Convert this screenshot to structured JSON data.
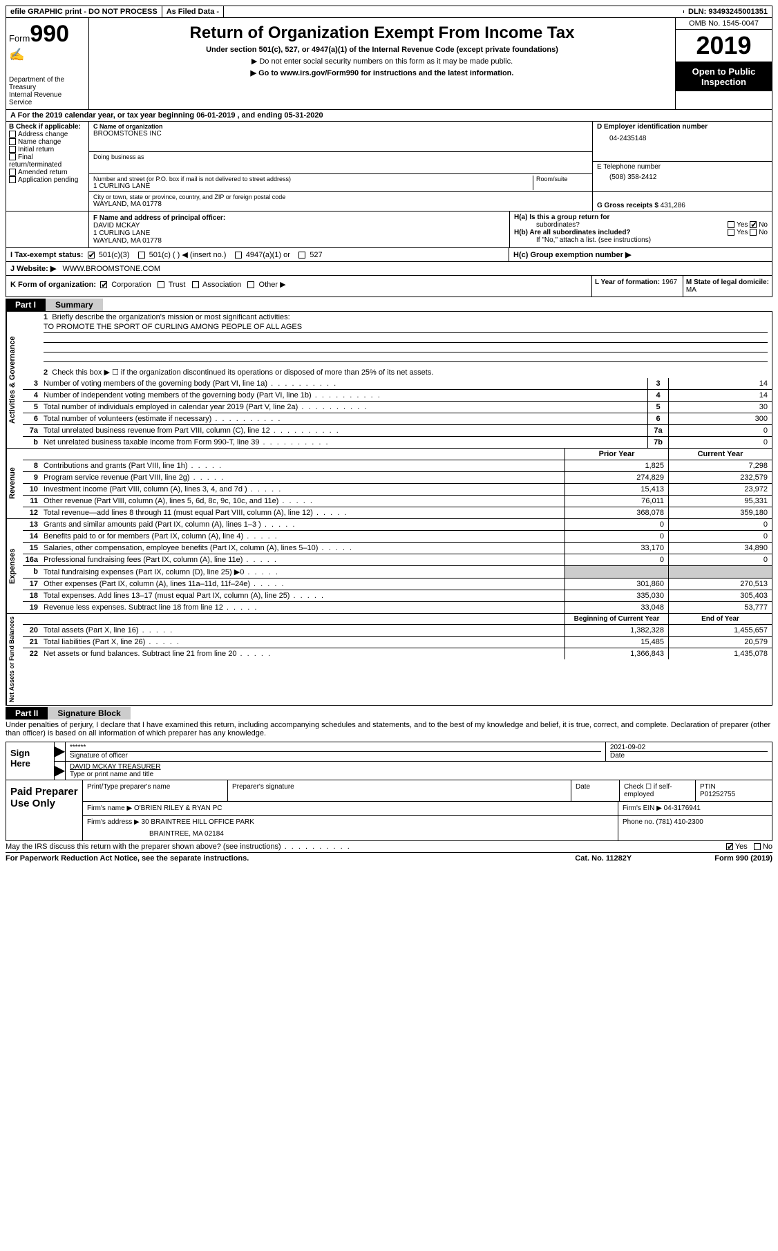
{
  "top": {
    "efile": "efile GRAPHIC print - DO NOT PROCESS",
    "asfiled": "As Filed Data -",
    "dln_label": "DLN:",
    "dln": "93493245001351"
  },
  "header": {
    "form_label": "Form",
    "form_num": "990",
    "dept1": "Department of the Treasury",
    "dept2": "Internal Revenue Service",
    "title": "Return of Organization Exempt From Income Tax",
    "sub": "Under section 501(c), 527, or 4947(a)(1) of the Internal Revenue Code (except private foundations)",
    "note1": "▶ Do not enter social security numbers on this form as it may be made public.",
    "note2_pre": "▶ Go to ",
    "note2_link": "www.irs.gov/Form990",
    "note2_post": " for instructions and the latest information.",
    "omb": "OMB No. 1545-0047",
    "year": "2019",
    "open": "Open to Public Inspection"
  },
  "row_a": "A   For the 2019 calendar year, or tax year beginning 06-01-2019    , and ending 05-31-2020",
  "col_b": {
    "label": "B Check if applicable:",
    "items": [
      "Address change",
      "Name change",
      "Initial return",
      "Final return/terminated",
      "Amended return",
      "Application pending"
    ]
  },
  "c": {
    "name_label": "C Name of organization",
    "name": "BROOMSTONES INC",
    "dba_label": "Doing business as",
    "addr_label": "Number and street (or P.O. box if mail is not delivered to street address)",
    "addr": "1 CURLING LANE",
    "room_label": "Room/suite",
    "city_label": "City or town, state or province, country, and ZIP or foreign postal code",
    "city": "WAYLAND, MA  01778"
  },
  "d": {
    "ein_label": "D Employer identification number",
    "ein": "04-2435148",
    "tel_label": "E Telephone number",
    "tel": "(508) 358-2412",
    "gross_label": "G Gross receipts $",
    "gross": "431,286"
  },
  "f": {
    "label": "F   Name and address of principal officer:",
    "name": "DAVID MCKAY",
    "addr1": "1 CURLING LANE",
    "addr2": "WAYLAND, MA  01778"
  },
  "h": {
    "a_label": "H(a)  Is this a group return for",
    "a_sub": "subordinates?",
    "b_label": "H(b)  Are all subordinates included?",
    "b_note": "If \"No,\" attach a list. (see instructions)",
    "c_label": "H(c)  Group exemption number ▶",
    "yes": "Yes",
    "no": "No"
  },
  "i": {
    "label": "I   Tax-exempt status:",
    "opt1": "501(c)(3)",
    "opt2": "501(c) (   ) ◀ (insert no.)",
    "opt3": "4947(a)(1) or",
    "opt4": "527"
  },
  "j": {
    "label": "J   Website: ▶",
    "val": "WWW.BROOMSTONE.COM"
  },
  "k": {
    "label": "K Form of organization:",
    "opts": [
      "Corporation",
      "Trust",
      "Association",
      "Other ▶"
    ],
    "l_label": "L Year of formation:",
    "l_val": "1967",
    "m_label": "M State of legal domicile:",
    "m_val": "MA"
  },
  "part1": {
    "tab": "Part I",
    "title": "Summary"
  },
  "gov": {
    "vlabel": "Activities & Governance",
    "l1": "Briefly describe the organization's mission or most significant activities:",
    "mission": "TO PROMOTE THE SPORT OF CURLING AMONG PEOPLE OF ALL AGES",
    "l2": "Check this box ▶ ☐  if the organization discontinued its operations or disposed of more than 25% of its net assets.",
    "rows": [
      {
        "n": "3",
        "d": "Number of voting members of the governing body (Part VI, line 1a)",
        "box": "3",
        "v": "14"
      },
      {
        "n": "4",
        "d": "Number of independent voting members of the governing body (Part VI, line 1b)",
        "box": "4",
        "v": "14"
      },
      {
        "n": "5",
        "d": "Total number of individuals employed in calendar year 2019 (Part V, line 2a)",
        "box": "5",
        "v": "30"
      },
      {
        "n": "6",
        "d": "Total number of volunteers (estimate if necessary)",
        "box": "6",
        "v": "300"
      },
      {
        "n": "7a",
        "d": "Total unrelated business revenue from Part VIII, column (C), line 12",
        "box": "7a",
        "v": "0"
      },
      {
        "n": "b",
        "d": "Net unrelated business taxable income from Form 990-T, line 39",
        "box": "7b",
        "v": "0"
      }
    ]
  },
  "rev": {
    "vlabel": "Revenue",
    "h1": "Prior Year",
    "h2": "Current Year",
    "rows": [
      {
        "n": "8",
        "d": "Contributions and grants (Part VIII, line 1h)",
        "p": "1,825",
        "c": "7,298"
      },
      {
        "n": "9",
        "d": "Program service revenue (Part VIII, line 2g)",
        "p": "274,829",
        "c": "232,579"
      },
      {
        "n": "10",
        "d": "Investment income (Part VIII, column (A), lines 3, 4, and 7d )",
        "p": "15,413",
        "c": "23,972"
      },
      {
        "n": "11",
        "d": "Other revenue (Part VIII, column (A), lines 5, 6d, 8c, 9c, 10c, and 11e)",
        "p": "76,011",
        "c": "95,331"
      },
      {
        "n": "12",
        "d": "Total revenue—add lines 8 through 11 (must equal Part VIII, column (A), line 12)",
        "p": "368,078",
        "c": "359,180"
      }
    ]
  },
  "exp": {
    "vlabel": "Expenses",
    "rows": [
      {
        "n": "13",
        "d": "Grants and similar amounts paid (Part IX, column (A), lines 1–3 )",
        "p": "0",
        "c": "0"
      },
      {
        "n": "14",
        "d": "Benefits paid to or for members (Part IX, column (A), line 4)",
        "p": "0",
        "c": "0"
      },
      {
        "n": "15",
        "d": "Salaries, other compensation, employee benefits (Part IX, column (A), lines 5–10)",
        "p": "33,170",
        "c": "34,890"
      },
      {
        "n": "16a",
        "d": "Professional fundraising fees (Part IX, column (A), line 11e)",
        "p": "0",
        "c": "0"
      },
      {
        "n": "b",
        "d": "Total fundraising expenses (Part IX, column (D), line 25)  ▶0",
        "p": "",
        "c": "",
        "gray": true
      },
      {
        "n": "17",
        "d": "Other expenses (Part IX, column (A), lines 11a–11d, 11f–24e)",
        "p": "301,860",
        "c": "270,513"
      },
      {
        "n": "18",
        "d": "Total expenses. Add lines 13–17 (must equal Part IX, column (A), line 25)",
        "p": "335,030",
        "c": "305,403"
      },
      {
        "n": "19",
        "d": "Revenue less expenses. Subtract line 18 from line 12",
        "p": "33,048",
        "c": "53,777"
      }
    ]
  },
  "net": {
    "vlabel": "Net Assets or Fund Balances",
    "h1": "Beginning of Current Year",
    "h2": "End of Year",
    "rows": [
      {
        "n": "20",
        "d": "Total assets (Part X, line 16)",
        "p": "1,382,328",
        "c": "1,455,657"
      },
      {
        "n": "21",
        "d": "Total liabilities (Part X, line 26)",
        "p": "15,485",
        "c": "20,579"
      },
      {
        "n": "22",
        "d": "Net assets or fund balances. Subtract line 21 from line 20",
        "p": "1,366,843",
        "c": "1,435,078"
      }
    ]
  },
  "part2": {
    "tab": "Part II",
    "title": "Signature Block"
  },
  "decl": "Under penalties of perjury, I declare that I have examined this return, including accompanying schedules and statements, and to the best of my knowledge and belief, it is true, correct, and complete. Declaration of preparer (other than officer) is based on all information of which preparer has any knowledge.",
  "sign": {
    "label": "Sign Here",
    "sig_stars": "******",
    "sig_label": "Signature of officer",
    "date": "2021-09-02",
    "date_label": "Date",
    "name": "DAVID MCKAY TREASURER",
    "name_label": "Type or print name and title"
  },
  "prep": {
    "label": "Paid Preparer Use Only",
    "r1": {
      "a": "Print/Type preparer's name",
      "b": "Preparer's signature",
      "c": "Date",
      "d": "Check ☐  if self-employed",
      "e": "PTIN",
      "f": "P01252755"
    },
    "r2": {
      "a": "Firm's name      ▶",
      "b": "O'BRIEN RILEY & RYAN PC",
      "c": "Firm's EIN ▶",
      "d": "04-3176941"
    },
    "r3": {
      "a": "Firm's address ▶",
      "b": "30 BRAINTREE HILL OFFICE PARK",
      "c": "Phone no.",
      "d": "(781) 410-2300"
    },
    "r3b": "BRAINTREE, MA  02184"
  },
  "foot": {
    "q": "May the IRS discuss this return with the preparer shown above? (see instructions)",
    "yes": "Yes",
    "no": "No",
    "pra": "For Paperwork Reduction Act Notice, see the separate instructions.",
    "cat": "Cat. No. 11282Y",
    "form": "Form 990 (2019)"
  }
}
